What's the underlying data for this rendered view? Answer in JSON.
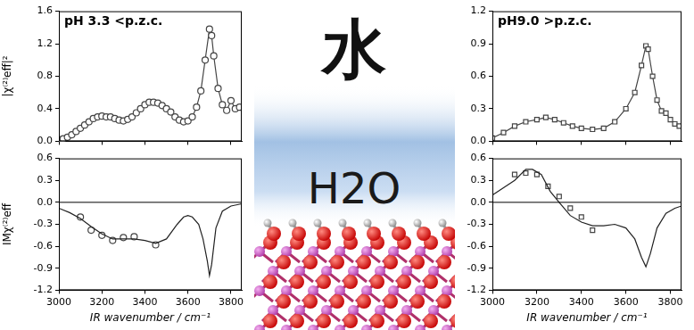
{
  "chart_data": [
    {
      "type": "scatter",
      "title": "pH 3.3 <p.z.c.",
      "y_label": "|χ⁽²⁾eff|²",
      "xlim": [
        3000,
        3850
      ],
      "xticks": [
        3000,
        3200,
        3400,
        3600,
        3800
      ],
      "ylim": [
        0,
        1.6
      ],
      "yticks": [
        {
          "value": 0,
          "label": "0.0"
        },
        0.4,
        0.8,
        1.2,
        1.6
      ],
      "tick_labels": "y",
      "grid": false,
      "series": [
        {
          "color": "#444444",
          "marker": "circle",
          "line_style": "solid",
          "x": [
            3000,
            3020,
            3040,
            3060,
            3080,
            3100,
            3120,
            3140,
            3160,
            3180,
            3200,
            3220,
            3240,
            3260,
            3280,
            3300,
            3320,
            3340,
            3360,
            3380,
            3400,
            3420,
            3440,
            3460,
            3480,
            3500,
            3520,
            3540,
            3560,
            3580,
            3600,
            3620,
            3640,
            3660,
            3680,
            3700,
            3710,
            3720,
            3740,
            3760,
            3780,
            3800,
            3820,
            3840
          ],
          "values": [
            0.02,
            0.03,
            0.05,
            0.08,
            0.12,
            0.16,
            0.2,
            0.24,
            0.28,
            0.3,
            0.31,
            0.3,
            0.3,
            0.28,
            0.26,
            0.25,
            0.27,
            0.3,
            0.35,
            0.4,
            0.45,
            0.48,
            0.48,
            0.47,
            0.44,
            0.4,
            0.36,
            0.3,
            0.26,
            0.24,
            0.25,
            0.3,
            0.42,
            0.62,
            1.0,
            1.38,
            1.3,
            1.05,
            0.65,
            0.45,
            0.38,
            0.5,
            0.4,
            0.42
          ]
        }
      ]
    },
    {
      "type": "scatter",
      "y_label": "IMχ⁽²⁾eff",
      "x_label": "IR wavenumber / cm⁻¹",
      "xlim": [
        3000,
        3850
      ],
      "xticks": [
        3000,
        3200,
        3400,
        3600,
        3800
      ],
      "ylim": [
        -1.2,
        0.6
      ],
      "yticks": [
        -1.2,
        -0.9,
        -0.6,
        -0.3,
        {
          "value": 0,
          "label": "0.0"
        },
        0.3,
        0.6
      ],
      "grid": false,
      "series": [
        {
          "color": "#222222",
          "marker": "none",
          "line_style": "solid",
          "x": [
            3000,
            3050,
            3100,
            3150,
            3200,
            3250,
            3300,
            3350,
            3400,
            3450,
            3500,
            3550,
            3580,
            3600,
            3620,
            3650,
            3670,
            3690,
            3700,
            3710,
            3730,
            3760,
            3800,
            3850
          ],
          "values": [
            -0.08,
            -0.14,
            -0.22,
            -0.33,
            -0.43,
            -0.5,
            -0.5,
            -0.5,
            -0.52,
            -0.56,
            -0.5,
            -0.3,
            -0.2,
            -0.18,
            -0.2,
            -0.3,
            -0.5,
            -0.8,
            -1.0,
            -0.85,
            -0.35,
            -0.12,
            -0.05,
            -0.02
          ]
        },
        {
          "color": "#444444",
          "marker": "circle",
          "line_style": "none",
          "x": [
            3100,
            3150,
            3200,
            3250,
            3300,
            3350,
            3450
          ],
          "values": [
            -0.2,
            -0.38,
            -0.45,
            -0.52,
            -0.48,
            -0.47,
            -0.58
          ]
        }
      ]
    },
    {
      "type": "scatter",
      "title": "pH9.0 >p.z.c.",
      "xlim": [
        3000,
        3850
      ],
      "xticks": [
        3000,
        3200,
        3400,
        3600,
        3800
      ],
      "ylim": [
        0,
        1.2
      ],
      "yticks": [
        {
          "value": 0,
          "label": "0.0"
        },
        0.3,
        0.6,
        0.9,
        1.2
      ],
      "tick_labels": "y",
      "grid": false,
      "series": [
        {
          "color": "#444444",
          "marker": "square",
          "line_style": "solid",
          "x": [
            3000,
            3050,
            3100,
            3150,
            3200,
            3240,
            3280,
            3320,
            3360,
            3400,
            3450,
            3500,
            3550,
            3600,
            3640,
            3670,
            3690,
            3700,
            3720,
            3740,
            3760,
            3780,
            3800,
            3820,
            3840
          ],
          "values": [
            0.03,
            0.08,
            0.14,
            0.18,
            0.2,
            0.22,
            0.2,
            0.17,
            0.14,
            0.12,
            0.11,
            0.12,
            0.18,
            0.3,
            0.45,
            0.7,
            0.88,
            0.85,
            0.6,
            0.38,
            0.28,
            0.26,
            0.2,
            0.16,
            0.14
          ]
        }
      ]
    },
    {
      "type": "scatter",
      "x_label": "IR wavenumber / cm⁻¹",
      "xlim": [
        3000,
        3850
      ],
      "xticks": [
        3000,
        3200,
        3400,
        3600,
        3800
      ],
      "ylim": [
        -1.2,
        0.6
      ],
      "yticks": [
        -1.2,
        -0.9,
        -0.6,
        -0.3,
        {
          "value": 0,
          "label": "0.0"
        },
        0.3,
        0.6
      ],
      "grid": false,
      "series": [
        {
          "color": "#222222",
          "marker": "none",
          "line_style": "solid",
          "x": [
            3000,
            3050,
            3100,
            3150,
            3180,
            3220,
            3260,
            3300,
            3350,
            3400,
            3450,
            3500,
            3550,
            3600,
            3640,
            3670,
            3690,
            3710,
            3740,
            3780,
            3820,
            3850
          ],
          "values": [
            0.1,
            0.2,
            0.3,
            0.45,
            0.45,
            0.38,
            0.15,
            0.0,
            -0.18,
            -0.27,
            -0.32,
            -0.32,
            -0.3,
            -0.35,
            -0.5,
            -0.75,
            -0.88,
            -0.7,
            -0.35,
            -0.15,
            -0.08,
            -0.05
          ]
        },
        {
          "color": "#444444",
          "marker": "square",
          "line_style": "none",
          "x": [
            3100,
            3150,
            3200,
            3250,
            3300,
            3350,
            3400,
            3450
          ],
          "values": [
            0.38,
            0.4,
            0.38,
            0.22,
            0.08,
            -0.08,
            -0.2,
            -0.38
          ]
        }
      ]
    }
  ],
  "center": {
    "character": "水",
    "label": "H2O"
  }
}
